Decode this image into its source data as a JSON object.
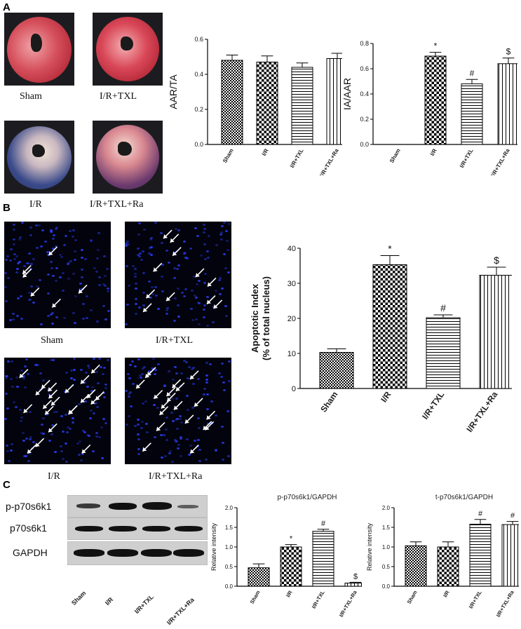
{
  "panels": {
    "a": "A",
    "b": "B",
    "c": "C"
  },
  "panel_a": {
    "image_labels": [
      "Sham",
      "I/R+TXL",
      "I/R",
      "I/R+TXL+Ra"
    ]
  },
  "panel_b": {
    "image_labels": [
      "Sham",
      "I/R+TXL",
      "I/R",
      "I/R+TXL+Ra"
    ]
  },
  "panel_c": {
    "blot_rows": [
      "p-p70s6k1",
      "p70s6k1",
      "GAPDH"
    ],
    "lanes": [
      "Sham",
      "I/R",
      "I/R+TXL",
      "I/R+TXL+Ra"
    ]
  },
  "colors": {
    "axis": "#000000",
    "bar_stroke": "#000000",
    "marker_bg": "#ffffff"
  },
  "chart_data": [
    {
      "id": "aar_ta",
      "type": "bar",
      "title": "",
      "xlabel": "",
      "ylabel": "AAR/TA",
      "categories": [
        "Sham",
        "I/R",
        "I/R+TXL",
        "I/R+TXL+Ra"
      ],
      "values": [
        0.48,
        0.47,
        0.44,
        0.49
      ],
      "errors": [
        0.03,
        0.035,
        0.025,
        0.03
      ],
      "annotations": [
        "",
        "",
        "",
        ""
      ],
      "patterns": [
        "checker",
        "checker-big",
        "hlines",
        "vlines"
      ],
      "ylim": [
        0,
        0.6
      ],
      "yticks": [
        "0.0",
        "0.2",
        "0.4",
        "0.6"
      ],
      "grid": false
    },
    {
      "id": "ia_aar",
      "type": "bar",
      "title": "",
      "xlabel": "",
      "ylabel": "IA/AAR",
      "categories": [
        "Sham",
        "I/R",
        "I/R+TXL",
        "I/R+TXL+Ra"
      ],
      "values": [
        0,
        0.7,
        0.48,
        0.64
      ],
      "errors": [
        0,
        0.03,
        0.035,
        0.045
      ],
      "annotations": [
        "",
        "*",
        "#",
        "$"
      ],
      "patterns": [
        "checker",
        "checker-big",
        "hlines",
        "vlines"
      ],
      "ylim": [
        0,
        0.8
      ],
      "yticks": [
        "0.0",
        "0.2",
        "0.4",
        "0.6",
        "0.8"
      ],
      "grid": false
    },
    {
      "id": "apoptotic",
      "type": "bar",
      "title": "",
      "xlabel": "",
      "ylabel": "Apoptotic Index",
      "ylabel2": "(% of total nucleus)",
      "categories": [
        "Sham",
        "I/R",
        "I/R+TXL",
        "I/R+TXL+Ra"
      ],
      "values": [
        10.3,
        35.3,
        20.2,
        32.3
      ],
      "errors": [
        1.0,
        2.6,
        0.8,
        2.3
      ],
      "annotations": [
        "",
        "*",
        "#",
        "$"
      ],
      "patterns": [
        "checker",
        "checker-big",
        "hlines",
        "vlines"
      ],
      "ylim": [
        0,
        40
      ],
      "yticks": [
        "0",
        "10",
        "20",
        "30",
        "40"
      ],
      "grid": false
    },
    {
      "id": "p_gapdh",
      "type": "bar",
      "title": "p-p70s6k1/GAPDH",
      "xlabel": "",
      "ylabel": "Relative intensity",
      "categories": [
        "Sham",
        "I/R",
        "I/R+TXL",
        "I/R+TXL+Ra"
      ],
      "values": [
        0.47,
        1.0,
        1.4,
        0.08
      ],
      "errors": [
        0.1,
        0.06,
        0.05,
        0.02
      ],
      "annotations": [
        "",
        "*",
        "#",
        "$"
      ],
      "patterns": [
        "checker",
        "checker-big",
        "hlines",
        "vlines"
      ],
      "ylim": [
        0,
        2.0
      ],
      "yticks": [
        "0.0",
        "0.5",
        "1.0",
        "1.5",
        "2.0"
      ],
      "grid": false
    },
    {
      "id": "t_gapdh",
      "type": "bar",
      "title": "t-p70s6k1/GAPDH",
      "xlabel": "",
      "ylabel": "Relative intensity",
      "categories": [
        "Sham",
        "I/R",
        "I/R+TXL",
        "I/R+TXL+Ra"
      ],
      "values": [
        1.03,
        1.0,
        1.58,
        1.57
      ],
      "errors": [
        0.1,
        0.13,
        0.12,
        0.08
      ],
      "annotations": [
        "",
        "",
        "#",
        "#"
      ],
      "patterns": [
        "checker",
        "checker-big",
        "hlines",
        "vlines"
      ],
      "ylim": [
        0,
        2.0
      ],
      "yticks": [
        "0.0",
        "0.5",
        "1.0",
        "1.5",
        "2.0"
      ],
      "grid": false
    }
  ]
}
